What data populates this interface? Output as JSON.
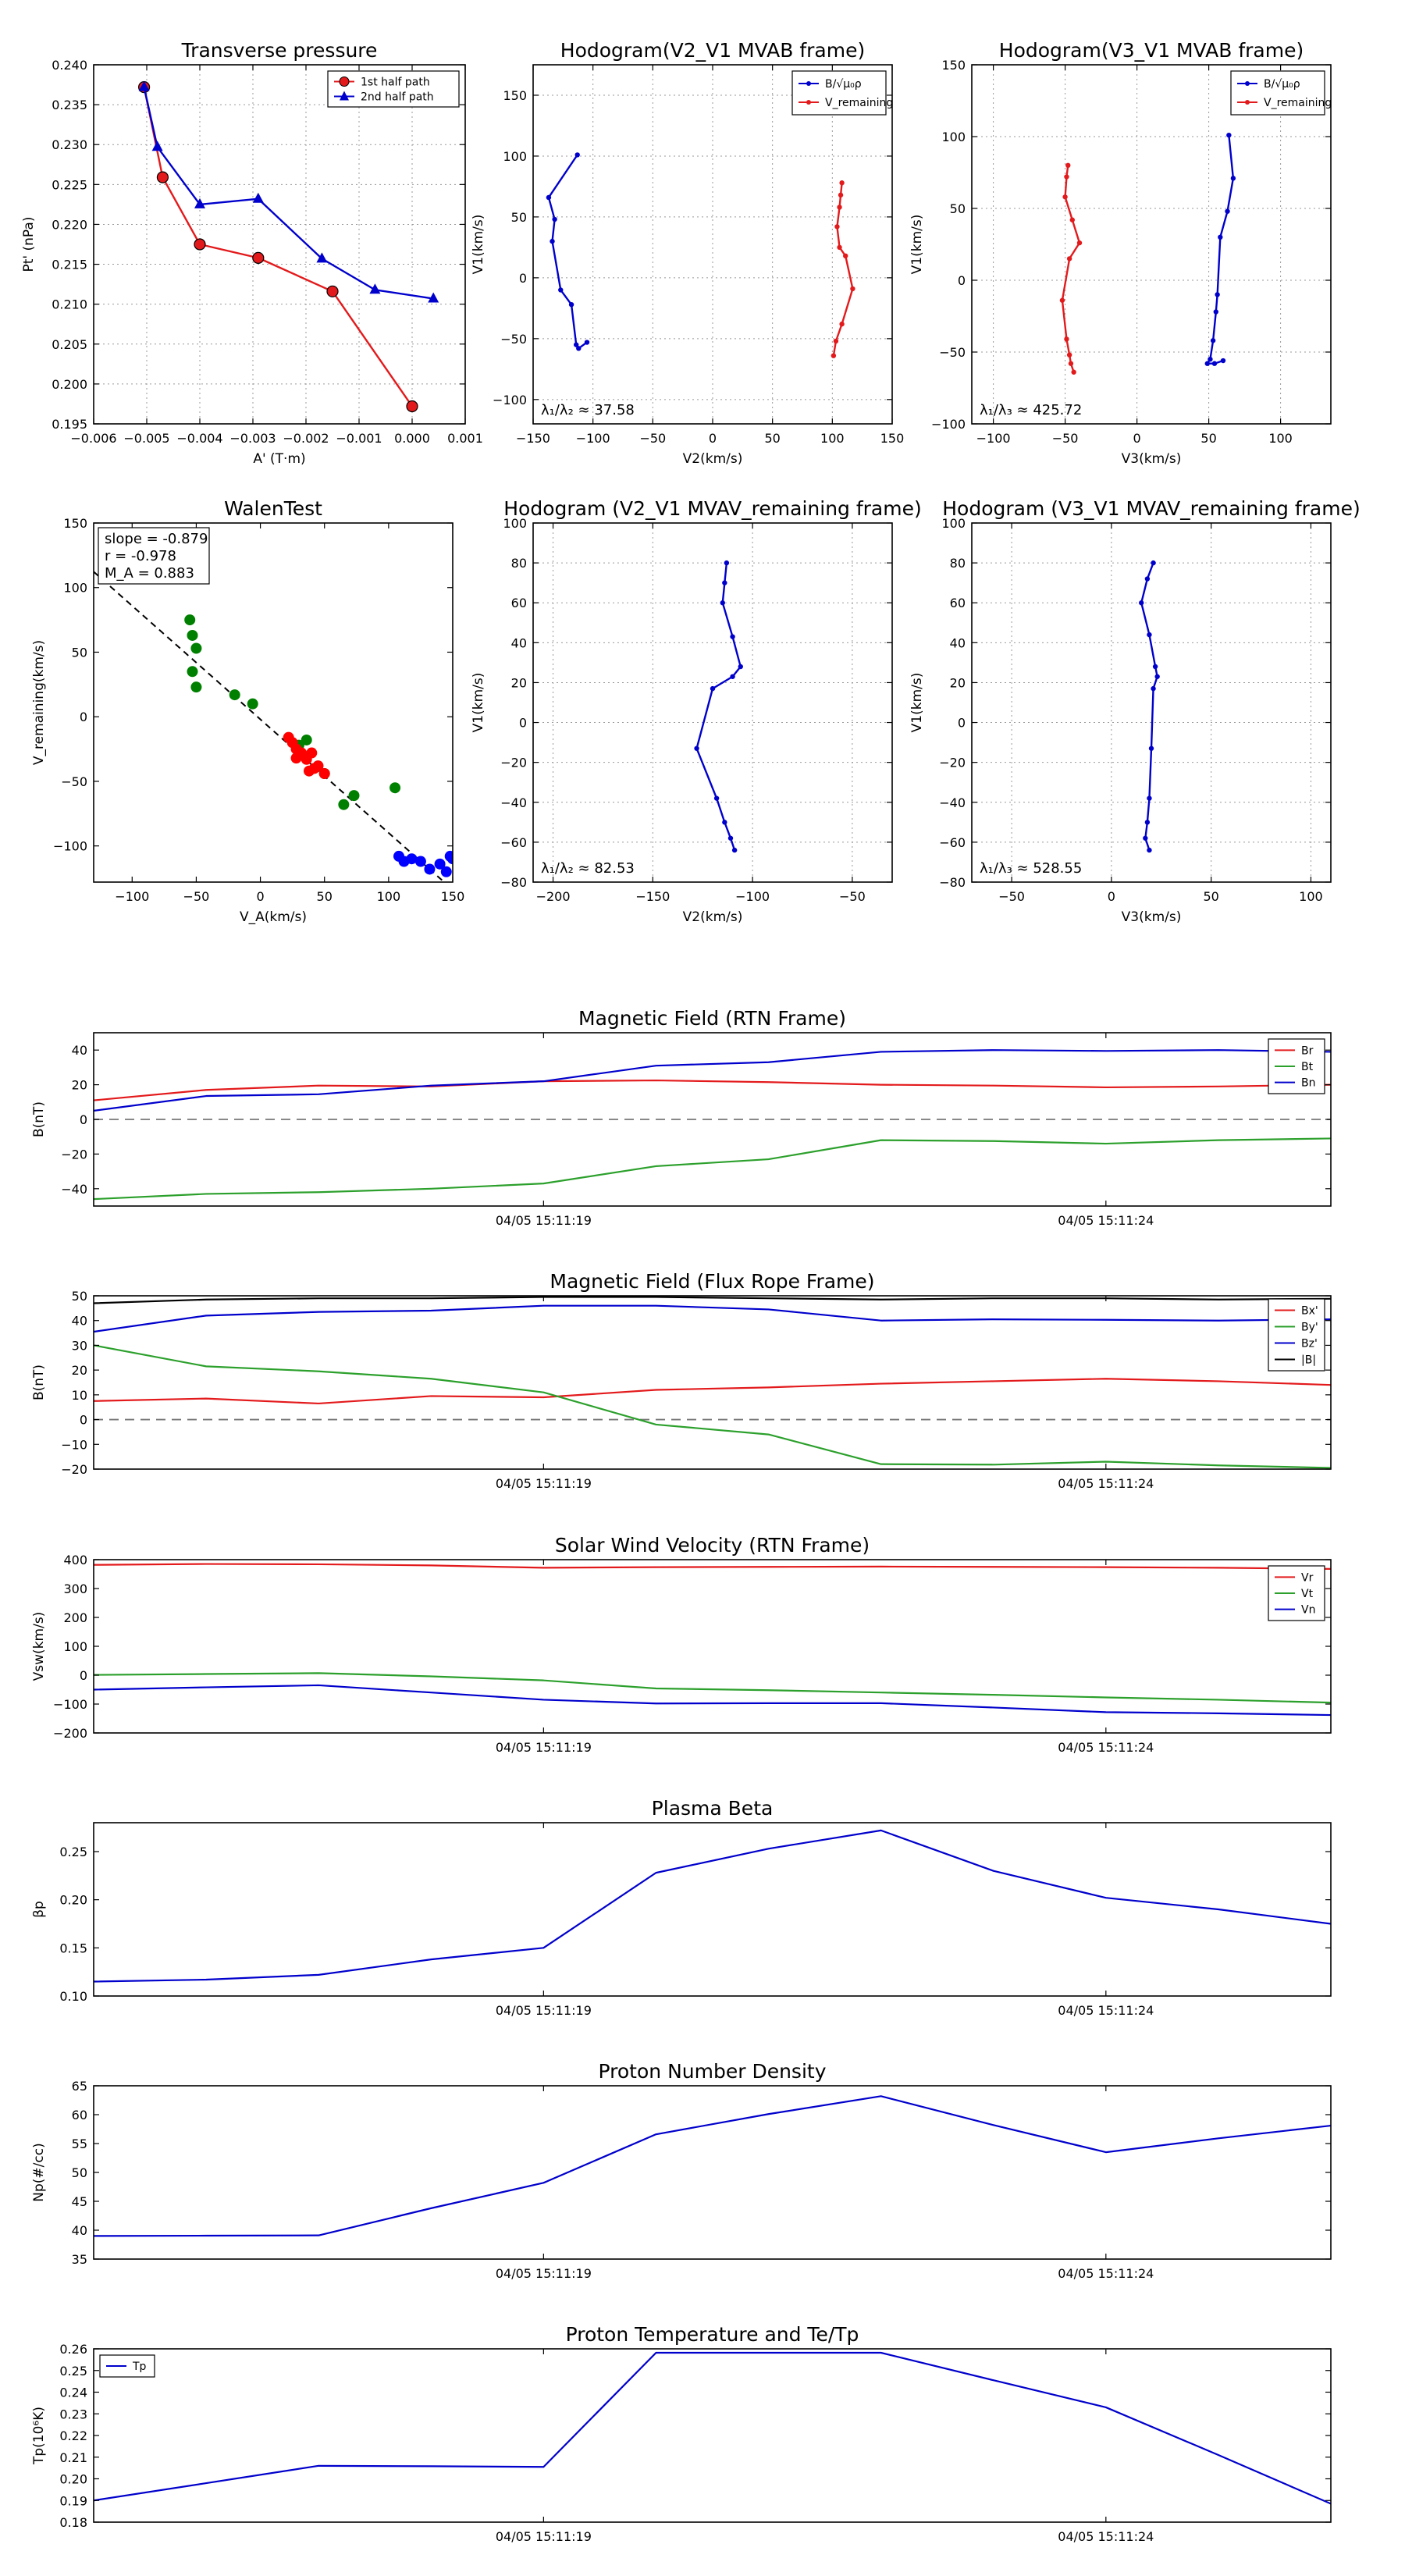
{
  "chart_data": [
    {
      "id": "transverse-pressure",
      "type": "line",
      "title": "Transverse pressure",
      "xlabel": "A' (T·m)",
      "ylabel": "Pt' (nPa)",
      "xlim": [
        -0.006,
        0.001
      ],
      "ylim": [
        0.195,
        0.24
      ],
      "xticks": [
        -0.006,
        -0.005,
        -0.004,
        -0.003,
        -0.002,
        -0.001,
        0.0,
        0.001
      ],
      "xtick_labels": [
        "−0.006",
        "−0.005",
        "−0.004",
        "−0.003",
        "−0.002",
        "−0.001",
        "0.000",
        "0.001"
      ],
      "yticks": [
        0.195,
        0.2,
        0.205,
        0.21,
        0.215,
        0.22,
        0.225,
        0.23,
        0.235,
        0.24
      ],
      "ytick_labels": [
        "0.195",
        "0.200",
        "0.205",
        "0.210",
        "0.215",
        "0.220",
        "0.225",
        "0.230",
        "0.235",
        "0.240"
      ],
      "grid": true,
      "legend": "upper-right",
      "series": [
        {
          "name": "1st half path",
          "color": "#e31a1c",
          "marker": "circle",
          "x": [
            -0.00505,
            -0.0047,
            -0.004,
            -0.0029,
            -0.0015,
            0.0
          ],
          "y": [
            0.2372,
            0.2259,
            0.2175,
            0.2158,
            0.2116,
            0.1972
          ]
        },
        {
          "name": "2nd half path",
          "color": "#0000cc",
          "marker": "triangle",
          "x": [
            -0.00505,
            -0.0048,
            -0.004,
            -0.0029,
            -0.0017,
            -0.0007,
            0.0004
          ],
          "y": [
            0.2372,
            0.2297,
            0.2225,
            0.2232,
            0.2157,
            0.2118,
            0.2107
          ]
        }
      ]
    },
    {
      "id": "hodogram-v2-mvab",
      "type": "line",
      "title": "Hodogram(V2_V1 MVAB frame)",
      "xlabel": "V2(km/s)",
      "ylabel": "V1(km/s)",
      "xlim": [
        -150,
        150
      ],
      "ylim": [
        -120,
        175
      ],
      "xticks": [
        -150,
        -100,
        -50,
        0,
        50,
        100,
        150
      ],
      "yticks": [
        -100,
        -50,
        0,
        50,
        100,
        150
      ],
      "grid": true,
      "legend": "upper-right",
      "annotation": "λ₁/λ₂ ≈ 37.58",
      "series": [
        {
          "name": "B/√μ₀ρ",
          "color": "#0000cc",
          "x": [
            -113,
            -137,
            -132,
            -134,
            -127,
            -118,
            -114,
            -112,
            -105
          ],
          "y": [
            101,
            66,
            48,
            30,
            -10,
            -22,
            -55,
            -58,
            -53
          ]
        },
        {
          "name": "V_remaining",
          "color": "#e31a1c",
          "x": [
            108,
            107,
            106,
            104,
            106,
            111,
            117,
            108,
            103,
            101
          ],
          "y": [
            78,
            68,
            58,
            42,
            25,
            18,
            -9,
            -38,
            -52,
            -64
          ]
        }
      ]
    },
    {
      "id": "hodogram-v3-mvab",
      "type": "line",
      "title": "Hodogram(V3_V1 MVAB frame)",
      "xlabel": "V3(km/s)",
      "ylabel": "V1(km/s)",
      "xlim": [
        -115,
        135
      ],
      "ylim": [
        -100,
        150
      ],
      "xticks": [
        -100,
        -50,
        0,
        50,
        100
      ],
      "yticks": [
        -100,
        -50,
        0,
        50,
        100,
        150
      ],
      "grid": true,
      "legend": "upper-right",
      "annotation": "λ₁/λ₃ ≈ 425.72",
      "series": [
        {
          "name": "B/√μ₀ρ",
          "color": "#0000cc",
          "x": [
            64,
            67,
            63,
            58,
            56,
            55,
            53,
            51,
            49,
            54,
            60
          ],
          "y": [
            101,
            71,
            48,
            30,
            -10,
            -22,
            -42,
            -55,
            -58,
            -58,
            -56
          ]
        },
        {
          "name": "V_remaining",
          "color": "#e31a1c",
          "x": [
            -48,
            -49,
            -50,
            -45,
            -40,
            -47,
            -52,
            -49,
            -47,
            -46,
            -44
          ],
          "y": [
            80,
            72,
            58,
            42,
            26,
            15,
            -14,
            -41,
            -52,
            -58,
            -64
          ]
        }
      ]
    },
    {
      "id": "walen-test",
      "type": "scatter",
      "title": "WalenTest",
      "xlabel": "V_A(km/s)",
      "ylabel": "V_remaining(km/s)",
      "xlim": [
        -130,
        150
      ],
      "ylim": [
        -128,
        150
      ],
      "xticks": [
        -100,
        -50,
        0,
        50,
        100,
        150
      ],
      "yticks": [
        -100,
        -50,
        0,
        50,
        100,
        150
      ],
      "grid": false,
      "annotations": [
        "slope = -0.879",
        "r = -0.978",
        "M_A = 0.883"
      ],
      "fit_line": {
        "slope": -0.879,
        "intercept": -2
      },
      "series": [
        {
          "name": "green",
          "color": "#008000",
          "x": [
            -55,
            -53,
            -50,
            -53,
            -50,
            -20,
            -6,
            30,
            36,
            50,
            65,
            73,
            105
          ],
          "y": [
            75,
            63,
            53,
            35,
            23,
            17,
            10,
            -22,
            -18,
            -44,
            -68,
            -61,
            -55
          ]
        },
        {
          "name": "red",
          "color": "#ff0000",
          "x": [
            22,
            25,
            28,
            32,
            36,
            40,
            42,
            38,
            45,
            50,
            28
          ],
          "y": [
            -16,
            -20,
            -32,
            -28,
            -33,
            -28,
            -40,
            -42,
            -38,
            -44,
            -25
          ]
        },
        {
          "name": "blue",
          "color": "#0000ff",
          "x": [
            108,
            112,
            118,
            125,
            132,
            140,
            145,
            148,
            150
          ],
          "y": [
            -108,
            -112,
            -110,
            -112,
            -118,
            -114,
            -120,
            -108,
            -110
          ]
        }
      ]
    },
    {
      "id": "hodogram-v2-mvav",
      "type": "line",
      "title": "Hodogram (V2_V1 MVAV_remaining frame)",
      "xlabel": "V2(km/s)",
      "ylabel": "V1(km/s)",
      "xlim": [
        -210,
        -30
      ],
      "ylim": [
        -80,
        100
      ],
      "xticks": [
        -200,
        -150,
        -100,
        -50
      ],
      "yticks": [
        -80,
        -60,
        -40,
        -20,
        0,
        20,
        40,
        60,
        80,
        100
      ],
      "grid": true,
      "annotation": "λ₁/λ₂ ≈ 82.53",
      "series": [
        {
          "name": "hodogram",
          "color": "#0000cc",
          "x": [
            -113,
            -114,
            -115,
            -110,
            -106,
            -110,
            -120,
            -128,
            -118,
            -114,
            -111,
            -109
          ],
          "y": [
            80,
            70,
            60,
            43,
            28,
            23,
            17,
            -13,
            -38,
            -50,
            -58,
            -64
          ]
        }
      ]
    },
    {
      "id": "hodogram-v3-mvav",
      "type": "line",
      "title": "Hodogram (V3_V1 MVAV_remaining frame)",
      "xlabel": "V3(km/s)",
      "ylabel": "V1(km/s)",
      "xlim": [
        -70,
        110
      ],
      "ylim": [
        -80,
        100
      ],
      "xticks": [
        -50,
        0,
        50,
        100
      ],
      "yticks": [
        -80,
        -60,
        -40,
        -20,
        0,
        20,
        40,
        60,
        80,
        100
      ],
      "grid": true,
      "annotation": "λ₁/λ₃ ≈ 528.55",
      "series": [
        {
          "name": "hodogram",
          "color": "#0000cc",
          "x": [
            21,
            18,
            15,
            19,
            22,
            23,
            21,
            20,
            19,
            18,
            17,
            19
          ],
          "y": [
            80,
            72,
            60,
            44,
            28,
            23,
            17,
            -13,
            -38,
            -50,
            -58,
            -64
          ]
        }
      ]
    },
    {
      "id": "magnetic-field-rtn",
      "type": "line",
      "title": "Magnetic Field (RTN Frame)",
      "xlabel": "",
      "ylabel": "B(nT)",
      "xlim": [
        0,
        11
      ],
      "ylim": [
        -50,
        50
      ],
      "xticks": [
        4,
        9
      ],
      "xtick_labels": [
        "04/05 15:11:19",
        "04/05 15:11:24"
      ],
      "yticks": [
        -40,
        -20,
        0,
        20,
        40
      ],
      "zero_line": true,
      "legend": "right",
      "series": [
        {
          "name": "Br",
          "color": "#e31a1c",
          "x": [
            0,
            1,
            2,
            3,
            4,
            5,
            6,
            7,
            8,
            9,
            10,
            11
          ],
          "y": [
            11,
            17,
            19.5,
            19,
            22,
            22.5,
            21.5,
            20,
            19.5,
            18.5,
            19,
            20
          ]
        },
        {
          "name": "Bt",
          "color": "#2ca02c",
          "x": [
            0,
            1,
            2,
            3,
            4,
            5,
            6,
            7,
            8,
            9,
            10,
            11
          ],
          "y": [
            -46,
            -43,
            -42,
            -40,
            -37,
            -27,
            -23,
            -12,
            -12.5,
            -14,
            -12,
            -11
          ]
        },
        {
          "name": "Bn",
          "color": "#0000cc",
          "x": [
            0,
            1,
            2,
            3,
            4,
            5,
            6,
            7,
            8,
            9,
            10,
            11
          ],
          "y": [
            5,
            13.5,
            14.5,
            19.5,
            22,
            31,
            33,
            39,
            40,
            39.5,
            40,
            39
          ]
        }
      ]
    },
    {
      "id": "magnetic-field-flux-rope",
      "type": "line",
      "title": "Magnetic Field (Flux Rope Frame)",
      "xlabel": "",
      "ylabel": "B(nT)",
      "xlim": [
        0,
        11
      ],
      "ylim": [
        -20,
        50
      ],
      "xticks": [
        4,
        9
      ],
      "xtick_labels": [
        "04/05 15:11:19",
        "04/05 15:11:24"
      ],
      "yticks": [
        -20,
        -10,
        0,
        10,
        20,
        30,
        40,
        50
      ],
      "zero_line": true,
      "legend": "right",
      "series": [
        {
          "name": "Bx'",
          "color": "#e31a1c",
          "x": [
            0,
            1,
            2,
            3,
            4,
            5,
            6,
            7,
            8,
            9,
            10,
            11
          ],
          "y": [
            7.5,
            8.5,
            6.5,
            9.5,
            9,
            12,
            13,
            14.5,
            15.5,
            16.5,
            15.5,
            14
          ]
        },
        {
          "name": "By'",
          "color": "#2ca02c",
          "x": [
            0,
            1,
            2,
            3,
            4,
            5,
            6,
            7,
            8,
            9,
            10,
            11
          ],
          "y": [
            30,
            21.5,
            19.5,
            16.5,
            11,
            -2,
            -6,
            -18,
            -18.2,
            -17,
            -18.5,
            -19.5
          ]
        },
        {
          "name": "Bz'",
          "color": "#0000cc",
          "x": [
            0,
            1,
            2,
            3,
            4,
            5,
            6,
            7,
            8,
            9,
            10,
            11
          ],
          "y": [
            35.5,
            42,
            43.5,
            44,
            46,
            46,
            44.5,
            40,
            40.5,
            40.3,
            40,
            40.5
          ]
        },
        {
          "name": "|B|",
          "color": "#000000",
          "x": [
            0,
            1,
            2,
            3,
            4,
            5,
            6,
            7,
            8,
            9,
            10,
            11
          ],
          "y": [
            47,
            48.5,
            49,
            49,
            49.5,
            49.5,
            49,
            48.5,
            49,
            49,
            48.5,
            48.8
          ]
        }
      ]
    },
    {
      "id": "solar-wind-velocity",
      "type": "line",
      "title": "Solar Wind Velocity (RTN Frame)",
      "xlabel": "",
      "ylabel": "Vsw(km/s)",
      "xlim": [
        0,
        11
      ],
      "ylim": [
        -200,
        400
      ],
      "xticks": [
        4,
        9
      ],
      "xtick_labels": [
        "04/05 15:11:19",
        "04/05 15:11:24"
      ],
      "yticks": [
        -200,
        -100,
        0,
        100,
        200,
        300,
        400
      ],
      "legend": "right",
      "series": [
        {
          "name": "Vr",
          "color": "#e31a1c",
          "x": [
            0,
            1,
            2,
            3,
            4,
            5,
            6,
            7,
            8,
            9,
            10,
            11
          ],
          "y": [
            382,
            385,
            384,
            380,
            372,
            374,
            375,
            376,
            375,
            374,
            372,
            368
          ]
        },
        {
          "name": "Vt",
          "color": "#2ca02c",
          "x": [
            0,
            1,
            2,
            3,
            4,
            5,
            6,
            7,
            8,
            9,
            10,
            11
          ],
          "y": [
            1,
            4,
            7,
            -4,
            -18,
            -46,
            -52,
            -60,
            -68,
            -77,
            -85,
            -95
          ]
        },
        {
          "name": "Vn",
          "color": "#0000cc",
          "x": [
            0,
            1,
            2,
            3,
            4,
            5,
            6,
            7,
            8,
            9,
            10,
            11
          ],
          "y": [
            -50,
            -42,
            -35,
            -60,
            -85,
            -98,
            -97,
            -97,
            -112,
            -128,
            -132,
            -138
          ]
        }
      ]
    },
    {
      "id": "plasma-beta",
      "type": "line",
      "title": "Plasma Beta",
      "xlabel": "",
      "ylabel": "βp",
      "xlim": [
        0,
        11
      ],
      "ylim": [
        0.1,
        0.28
      ],
      "xticks": [
        4,
        9
      ],
      "xtick_labels": [
        "04/05 15:11:19",
        "04/05 15:11:24"
      ],
      "yticks": [
        0.1,
        0.15,
        0.2,
        0.25
      ],
      "ytick_labels": [
        "0.10",
        "0.15",
        "0.20",
        "0.25"
      ],
      "series": [
        {
          "name": "beta",
          "color": "#0000cc",
          "x": [
            0,
            1,
            2,
            3,
            4,
            5,
            6,
            7,
            8,
            9,
            10,
            11
          ],
          "y": [
            0.115,
            0.117,
            0.122,
            0.138,
            0.15,
            0.228,
            0.253,
            0.272,
            0.23,
            0.202,
            0.19,
            0.175
          ]
        }
      ]
    },
    {
      "id": "proton-number-density",
      "type": "line",
      "title": "Proton Number Density",
      "xlabel": "",
      "ylabel": "Np(#/cc)",
      "xlim": [
        0,
        11
      ],
      "ylim": [
        35,
        65
      ],
      "xticks": [
        4,
        9
      ],
      "xtick_labels": [
        "04/05 15:11:19",
        "04/05 15:11:24"
      ],
      "yticks": [
        35,
        40,
        45,
        50,
        55,
        60,
        65
      ],
      "series": [
        {
          "name": "Np",
          "color": "#0000cc",
          "x": [
            0,
            1,
            2,
            3,
            4,
            5,
            6,
            7,
            8,
            9,
            10,
            11
          ],
          "y": [
            39,
            39.05,
            39.1,
            43.8,
            48.2,
            56.6,
            60.1,
            63.2,
            58.2,
            53.5,
            55.9,
            58.1
          ]
        }
      ]
    },
    {
      "id": "proton-temperature",
      "type": "line",
      "title": "Proton Temperature and Te/Tp",
      "xlabel": "",
      "ylabel": "Tp(10⁶K)",
      "xlim": [
        0,
        11
      ],
      "ylim": [
        0.18,
        0.26
      ],
      "xticks": [
        4,
        9
      ],
      "xtick_labels": [
        "04/05 15:11:19",
        "04/05 15:11:24"
      ],
      "yticks": [
        0.18,
        0.19,
        0.2,
        0.21,
        0.22,
        0.23,
        0.24,
        0.25,
        0.26
      ],
      "ytick_labels": [
        "0.18",
        "0.19",
        "0.20",
        "0.21",
        "0.22",
        "0.23",
        "0.24",
        "0.25",
        "0.26"
      ],
      "legend": "upper-left",
      "series": [
        {
          "name": "Tp",
          "color": "#0000cc",
          "x": [
            0,
            1,
            2,
            3,
            4,
            5,
            6,
            7,
            8,
            9,
            10,
            11
          ],
          "y": [
            0.19,
            0.198,
            0.206,
            0.2058,
            0.2055,
            0.2582,
            0.2582,
            0.2582,
            0.2455,
            0.233,
            0.211,
            0.1885
          ]
        }
      ]
    }
  ]
}
